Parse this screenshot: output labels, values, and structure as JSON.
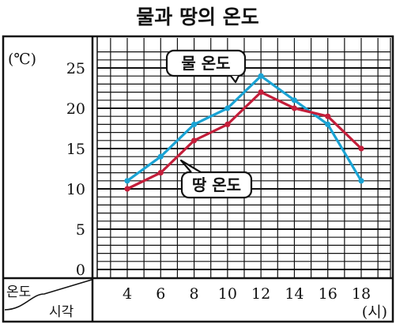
{
  "chart_data": {
    "type": "line",
    "title": "물과 땅의 온도",
    "ylabel": "(℃)",
    "xlabel": "(시)",
    "corner_top": "온도",
    "corner_bottom": "시각",
    "x": [
      4,
      6,
      8,
      10,
      12,
      14,
      16,
      18
    ],
    "xticks": [
      "4",
      "6",
      "8",
      "10",
      "12",
      "14",
      "16",
      "18"
    ],
    "yticks": [
      "0",
      "5",
      "10",
      "15",
      "20",
      "25"
    ],
    "ylim": [
      0,
      27
    ],
    "grid": true,
    "series": [
      {
        "name": "물 온도",
        "color": "#1aa3d4",
        "values": [
          11,
          14,
          18,
          20,
          24,
          21,
          18,
          11
        ]
      },
      {
        "name": "땅 온도",
        "color": "#c41e3a",
        "values": [
          10,
          12,
          16,
          18,
          22,
          20,
          19,
          15
        ]
      }
    ]
  }
}
